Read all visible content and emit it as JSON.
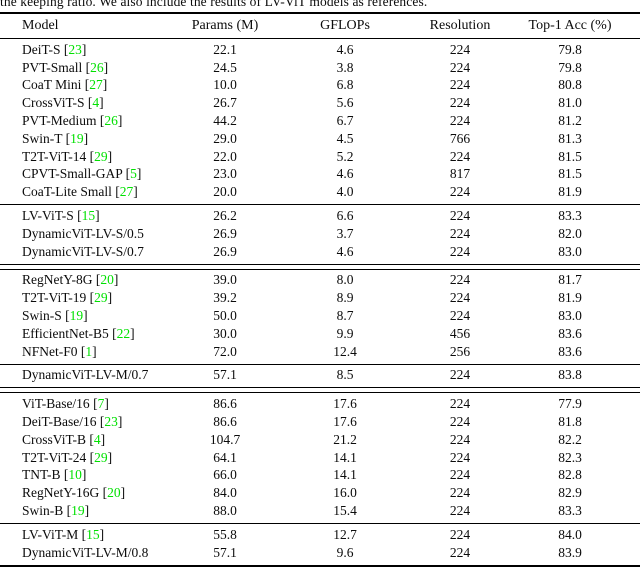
{
  "caption_partial": "the keeping ratio. We also include the results of LV-ViT models as references.",
  "colors": {
    "citation_green": "#00e100",
    "text": "#0b0b0b",
    "background": "#ffffff",
    "rule": "#000000"
  },
  "table": {
    "columns": [
      "Model",
      "Params (M)",
      "GFLOPs",
      "Resolution",
      "Top-1 Acc (%)"
    ],
    "groups": [
      {
        "separator_after": "single",
        "rows": [
          {
            "model": "DeiT-S",
            "cite": "23",
            "params": "22.1",
            "gflops": "4.6",
            "resolution": "224",
            "top1": "79.8"
          },
          {
            "model": "PVT-Small",
            "cite": "26",
            "params": "24.5",
            "gflops": "3.8",
            "resolution": "224",
            "top1": "79.8"
          },
          {
            "model": "CoaT Mini",
            "cite": "27",
            "params": "10.0",
            "gflops": "6.8",
            "resolution": "224",
            "top1": "80.8"
          },
          {
            "model": "CrossViT-S",
            "cite": "4",
            "params": "26.7",
            "gflops": "5.6",
            "resolution": "224",
            "top1": "81.0"
          },
          {
            "model": "PVT-Medium",
            "cite": "26",
            "params": "44.2",
            "gflops": "6.7",
            "resolution": "224",
            "top1": "81.2"
          },
          {
            "model": "Swin-T",
            "cite": "19",
            "params": "29.0",
            "gflops": "4.5",
            "resolution": "766",
            "top1": "81.3"
          },
          {
            "model": "T2T-ViT-14",
            "cite": "29",
            "params": "22.0",
            "gflops": "5.2",
            "resolution": "224",
            "top1": "81.5"
          },
          {
            "model": "CPVT-Small-GAP",
            "cite": "5",
            "params": "23.0",
            "gflops": "4.6",
            "resolution": "817",
            "top1": "81.5"
          },
          {
            "model": "CoaT-Lite Small",
            "cite": "27",
            "params": "20.0",
            "gflops": "4.0",
            "resolution": "224",
            "top1": "81.9"
          }
        ]
      },
      {
        "separator_after": "double",
        "rows": [
          {
            "model": "LV-ViT-S",
            "cite": "15",
            "params": "26.2",
            "gflops": "6.6",
            "resolution": "224",
            "top1": "83.3"
          },
          {
            "model": "DynamicViT-LV-S/0.5",
            "cite": null,
            "params": "26.9",
            "gflops": "3.7",
            "resolution": "224",
            "top1": "82.0"
          },
          {
            "model": "DynamicViT-LV-S/0.7",
            "cite": null,
            "params": "26.9",
            "gflops": "4.6",
            "resolution": "224",
            "top1": "83.0"
          }
        ]
      },
      {
        "separator_after": "single",
        "rows": [
          {
            "model": "RegNetY-8G",
            "cite": "20",
            "params": "39.0",
            "gflops": "8.0",
            "resolution": "224",
            "top1": "81.7"
          },
          {
            "model": "T2T-ViT-19",
            "cite": "29",
            "params": "39.2",
            "gflops": "8.9",
            "resolution": "224",
            "top1": "81.9"
          },
          {
            "model": "Swin-S",
            "cite": "19",
            "params": "50.0",
            "gflops": "8.7",
            "resolution": "224",
            "top1": "83.0"
          },
          {
            "model": "EfficientNet-B5",
            "cite": "22",
            "params": "30.0",
            "gflops": "9.9",
            "resolution": "456",
            "top1": "83.6"
          },
          {
            "model": "NFNet-F0",
            "cite": "1",
            "params": "72.0",
            "gflops": "12.4",
            "resolution": "256",
            "top1": "83.6"
          }
        ]
      },
      {
        "separator_after": "double",
        "rows": [
          {
            "model": "DynamicViT-LV-M/0.7",
            "cite": null,
            "params": "57.1",
            "gflops": "8.5",
            "resolution": "224",
            "top1": "83.8"
          }
        ]
      },
      {
        "separator_after": "single",
        "rows": [
          {
            "model": "ViT-Base/16",
            "cite": "7",
            "params": "86.6",
            "gflops": "17.6",
            "resolution": "224",
            "top1": "77.9"
          },
          {
            "model": "DeiT-Base/16",
            "cite": "23",
            "params": "86.6",
            "gflops": "17.6",
            "resolution": "224",
            "top1": "81.8"
          },
          {
            "model": "CrossViT-B",
            "cite": "4",
            "params": "104.7",
            "gflops": "21.2",
            "resolution": "224",
            "top1": "82.2"
          },
          {
            "model": "T2T-ViT-24",
            "cite": "29",
            "params": "64.1",
            "gflops": "14.1",
            "resolution": "224",
            "top1": "82.3"
          },
          {
            "model": "TNT-B",
            "cite": "10",
            "params": "66.0",
            "gflops": "14.1",
            "resolution": "224",
            "top1": "82.8"
          },
          {
            "model": "RegNetY-16G",
            "cite": "20",
            "params": "84.0",
            "gflops": "16.0",
            "resolution": "224",
            "top1": "82.9"
          },
          {
            "model": "Swin-B",
            "cite": "19",
            "params": "88.0",
            "gflops": "15.4",
            "resolution": "224",
            "top1": "83.3"
          }
        ]
      },
      {
        "separator_after": "thick",
        "rows": [
          {
            "model": "LV-ViT-M",
            "cite": "15",
            "params": "55.8",
            "gflops": "12.7",
            "resolution": "224",
            "top1": "84.0"
          },
          {
            "model": "DynamicViT-LV-M/0.8",
            "cite": null,
            "params": "57.1",
            "gflops": "9.6",
            "resolution": "224",
            "top1": "83.9"
          }
        ]
      }
    ]
  }
}
